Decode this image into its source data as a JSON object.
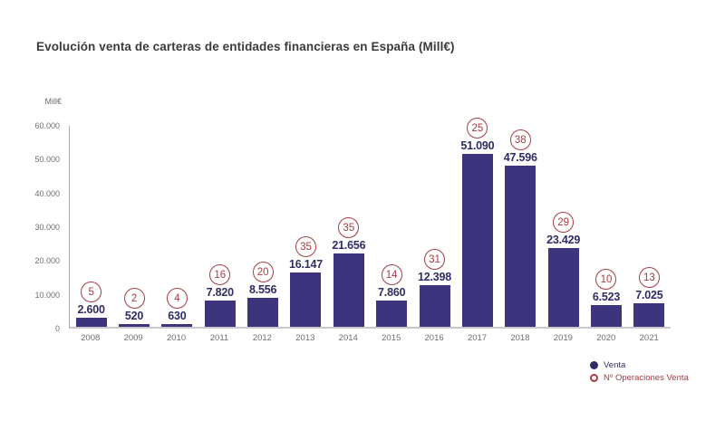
{
  "title": "Evolución venta de carteras de entidades financieras en España (Mill€)",
  "chart_data": {
    "type": "bar",
    "title": "Evolución venta de carteras de entidades financieras en España (Mill€)",
    "xlabel": "",
    "ylabel": "Mill€",
    "ylim": [
      0,
      60000
    ],
    "grid": false,
    "legend_position": "bottom-right",
    "y_ticks": [
      {
        "value": 60000,
        "label": "60.000"
      },
      {
        "value": 50000,
        "label": "50.000"
      },
      {
        "value": 40000,
        "label": "40.000"
      },
      {
        "value": 30000,
        "label": "30.000"
      },
      {
        "value": 20000,
        "label": "20.000"
      },
      {
        "value": 10000,
        "label": "10.000"
      },
      {
        "value": 0,
        "label": "0"
      }
    ],
    "categories": [
      "2008",
      "2009",
      "2010",
      "2011",
      "2012",
      "2013",
      "2014",
      "2015",
      "2016",
      "2017",
      "2018",
      "2019",
      "2020",
      "2021"
    ],
    "series": [
      {
        "name": "Venta",
        "values": [
          2600,
          520,
          630,
          7820,
          8556,
          16147,
          21656,
          7860,
          12398,
          51090,
          47596,
          23429,
          6523,
          7025
        ],
        "value_labels": [
          "2.600",
          "520",
          "630",
          "7.820",
          "8.556",
          "16.147",
          "21.656",
          "7.860",
          "12.398",
          "51.090",
          "47.596",
          "23.429",
          "6.523",
          "7.025"
        ],
        "color": "#3c347c"
      },
      {
        "name": "Nº Operaciones Venta",
        "values": [
          5,
          2,
          4,
          16,
          20,
          35,
          35,
          14,
          31,
          25,
          38,
          29,
          10,
          13
        ],
        "marker": "ring",
        "color": "#a63d42"
      }
    ],
    "legend": {
      "venta_label": "Venta",
      "operaciones_label": "Nº Operaciones Venta"
    }
  },
  "colors": {
    "bar": "#3c347c",
    "value_label": "#2e2d66",
    "operations_circle": "#a63d42",
    "axis_line": "#aeaeae",
    "tick_text": "#6e6e6e",
    "title_text": "#3b3b3b",
    "background": "#ffffff"
  }
}
